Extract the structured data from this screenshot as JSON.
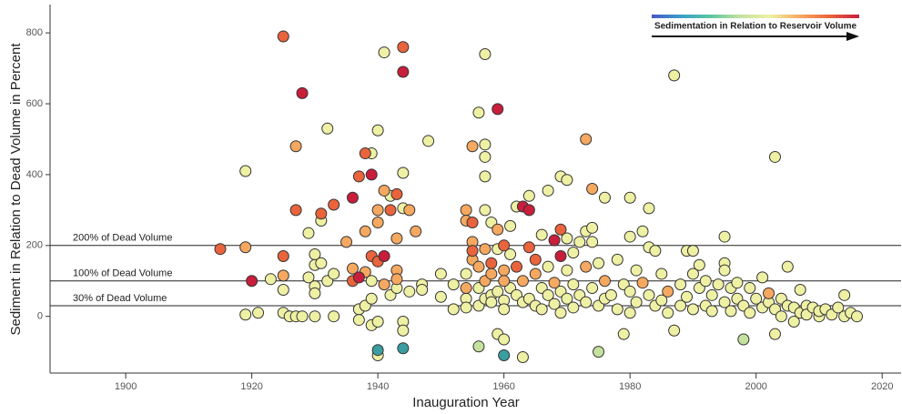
{
  "chart_data": {
    "type": "scatter",
    "x_label": "Inauguration Year",
    "y_label": "Sediment in Relation to Dead Volume in Percent",
    "xlim": [
      1888,
      2023
    ],
    "ylim": [
      -160,
      880
    ],
    "xticks": [
      1900,
      1920,
      1940,
      1960,
      1980,
      2000,
      2020
    ],
    "yticks": [
      0,
      200,
      400,
      600,
      800
    ],
    "annotations": [
      {
        "value": 200,
        "label": "200% of Dead Volume"
      },
      {
        "value": 100,
        "label": "100% of Dead Volume"
      },
      {
        "value": 30,
        "label": "30% of Dead Volume"
      }
    ],
    "colorbar": {
      "label": "Sedimentation in Relation to Reservoir Volume",
      "colors": [
        "#4a55c8",
        "#3aa0c8",
        "#5cc8a0",
        "#c4e29e",
        "#eef0a4",
        "#f5a860",
        "#e9643c",
        "#c81e3c"
      ]
    },
    "series": [
      {
        "color": "#eef0a4",
        "x": [
          1919,
          1919,
          1921,
          1923,
          1925,
          1925,
          1926,
          1927,
          1928,
          1929,
          1929,
          1930,
          1930,
          1930,
          1930,
          1930,
          1931,
          1931,
          1932,
          1932,
          1933,
          1933,
          1937,
          1937,
          1938,
          1939,
          1939,
          1939,
          1939,
          1940,
          1940,
          1940,
          1941,
          1942,
          1942,
          1943,
          1944,
          1944,
          1944,
          1944,
          1945,
          1947,
          1947,
          1948,
          1950,
          1950,
          1952,
          1952,
          1954,
          1954,
          1954,
          1956,
          1956,
          1956,
          1957,
          1957,
          1957,
          1957,
          1957,
          1957,
          1958,
          1958,
          1958,
          1959,
          1959,
          1959,
          1960,
          1960,
          1960,
          1961,
          1961,
          1961,
          1962,
          1962,
          1963,
          1963,
          1964,
          1964,
          1965,
          1966,
          1966,
          1966,
          1967,
          1967,
          1967,
          1968,
          1969,
          1969,
          1969,
          1970,
          1970,
          1970,
          1970,
          1971,
          1971,
          1971,
          1972,
          1972,
          1973,
          1973,
          1974,
          1974,
          1974,
          1975,
          1975,
          1976,
          1976,
          1977,
          1978,
          1978,
          1979,
          1979,
          1980,
          1980,
          1980,
          1980,
          1981,
          1981,
          1982,
          1983,
          1983,
          1983,
          1984,
          1984,
          1985,
          1985,
          1986,
          1987,
          1987,
          1988,
          1988,
          1989,
          1989,
          1990,
          1990,
          1990,
          1991,
          1991,
          1992,
          1992,
          1993,
          1993,
          1994,
          1995,
          1995,
          1995,
          1995,
          1996,
          1996,
          1997,
          1997,
          1998,
          1999,
          1999,
          2000,
          2001,
          2001,
          2002,
          2003,
          2003,
          2003,
          2004,
          2004,
          2005,
          2005,
          2006,
          2006,
          2007,
          2007,
          2008,
          2008,
          2009,
          2010,
          2010,
          2011,
          2012,
          2013,
          2014,
          2014,
          2015,
          2016
        ],
        "values": [
          410,
          5,
          10,
          105,
          75,
          10,
          0,
          0,
          0,
          235,
          110,
          175,
          145,
          85,
          65,
          0,
          270,
          150,
          530,
          100,
          120,
          0,
          20,
          -10,
          30,
          460,
          100,
          -25,
          50,
          525,
          -110,
          -15,
          745,
          340,
          60,
          80,
          405,
          305,
          -15,
          -40,
          70,
          90,
          75,
          495,
          120,
          55,
          90,
          20,
          120,
          50,
          25,
          575,
          80,
          30,
          740,
          485,
          450,
          395,
          300,
          50,
          265,
          60,
          40,
          190,
          -50,
          70,
          45,
          -65,
          20,
          255,
          175,
          80,
          310,
          60,
          -115,
          40,
          340,
          50,
          30,
          230,
          80,
          20,
          355,
          140,
          60,
          35,
          395,
          70,
          10,
          385,
          220,
          130,
          50,
          180,
          90,
          25,
          210,
          60,
          240,
          40,
          250,
          210,
          80,
          150,
          30,
          335,
          50,
          60,
          160,
          20,
          -50,
          90,
          335,
          225,
          70,
          10,
          130,
          40,
          240,
          305,
          195,
          60,
          185,
          30,
          120,
          45,
          10,
          680,
          -40,
          90,
          30,
          185,
          55,
          185,
          120,
          20,
          145,
          80,
          100,
          30,
          60,
          15,
          90,
          225,
          150,
          130,
          40,
          80,
          15,
          95,
          50,
          30,
          80,
          10,
          50,
          110,
          25,
          40,
          450,
          -50,
          20,
          50,
          0,
          140,
          30,
          -15,
          25,
          75,
          10,
          30,
          5,
          25,
          0,
          15,
          20,
          5,
          25,
          60,
          0,
          10,
          0
        ]
      },
      {
        "color": "#f5a860",
        "x": [
          1919,
          1925,
          1927,
          1935,
          1936,
          1938,
          1938,
          1940,
          1940,
          1941,
          1941,
          1943,
          1943,
          1943,
          1945,
          1946,
          1954,
          1954,
          1954,
          1955,
          1955,
          1955,
          1956,
          1957,
          1957,
          1958,
          1959,
          1960,
          1960,
          1963,
          1965,
          1968,
          1973,
          1973,
          1974,
          1976,
          1982,
          1986,
          2002
        ],
        "values": [
          195,
          115,
          480,
          210,
          135,
          240,
          125,
          300,
          265,
          355,
          90,
          220,
          130,
          105,
          300,
          240,
          300,
          270,
          80,
          480,
          210,
          160,
          140,
          190,
          100,
          120,
          245,
          130,
          100,
          100,
          120,
          95,
          500,
          140,
          360,
          100,
          95,
          70,
          65
        ]
      },
      {
        "color": "#e9643c",
        "x": [
          1915,
          1925,
          1925,
          1927,
          1931,
          1933,
          1936,
          1937,
          1938,
          1939,
          1940,
          1942,
          1943,
          1944,
          1955,
          1955,
          1958,
          1960,
          1962,
          1964,
          1965,
          1969
        ],
        "values": [
          190,
          790,
          170,
          300,
          290,
          315,
          100,
          395,
          460,
          170,
          155,
          300,
          345,
          760,
          265,
          185,
          150,
          200,
          140,
          195,
          160,
          245
        ]
      },
      {
        "color": "#c81e3c",
        "x": [
          1920,
          1928,
          1936,
          1937,
          1939,
          1941,
          1944,
          1959,
          1963,
          1964,
          1968,
          1969
        ],
        "values": [
          100,
          630,
          335,
          110,
          400,
          170,
          690,
          585,
          310,
          300,
          215,
          170
        ]
      },
      {
        "color": "#3a9ea0",
        "x": [
          1940,
          1944,
          1960
        ],
        "values": [
          -95,
          -90,
          -110
        ]
      },
      {
        "color": "#c4e29e",
        "x": [
          1956,
          1975,
          1998
        ],
        "values": [
          -85,
          -100,
          -65
        ]
      }
    ]
  }
}
